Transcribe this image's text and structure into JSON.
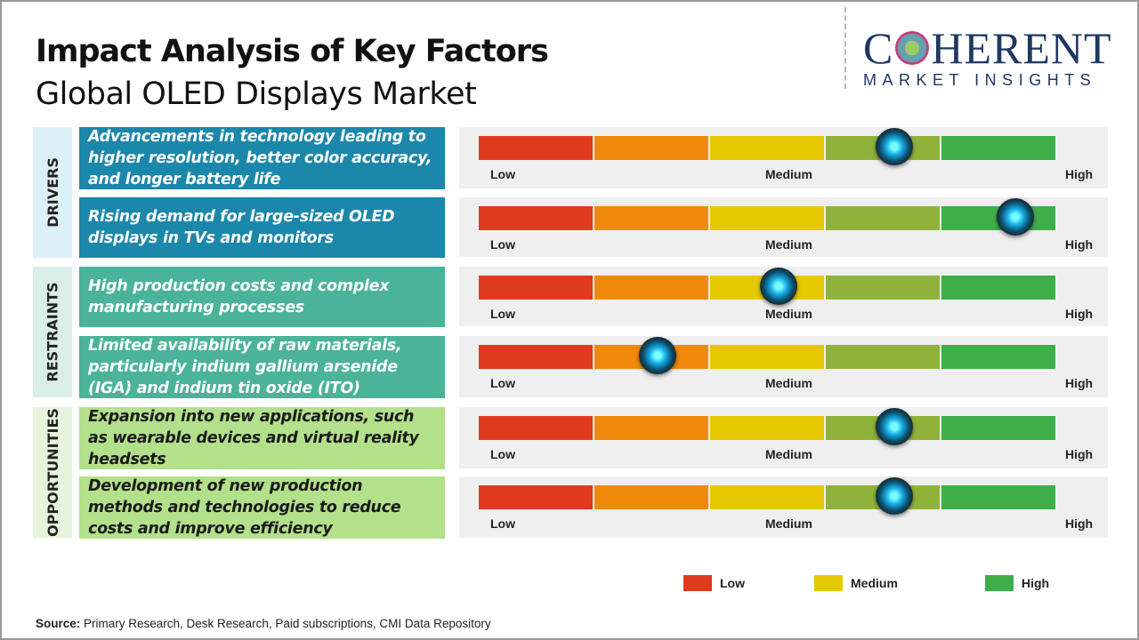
{
  "header": {
    "title": "Impact Analysis of Key Factors",
    "subtitle": "Global OLED Displays Market"
  },
  "logo": {
    "main_left": "C",
    "main_right": "HERENT",
    "sub": "MARKET INSIGHTS"
  },
  "scale_colors": [
    "#e03a1e",
    "#ef8a0c",
    "#e6c800",
    "#8fb33a",
    "#3fae49"
  ],
  "scale_labels": {
    "low": "Low",
    "medium": "Medium",
    "high": "High"
  },
  "categories": [
    {
      "label": "DRIVERS",
      "color": "#1b87aa",
      "bg": "#dcf0f7"
    },
    {
      "label": "RESTRAINTS",
      "color": "#4ab39a",
      "bg": "#daeee8"
    },
    {
      "label": "OPPORTUNITIES",
      "color": "#b3e08a",
      "bg": "#e6f4db"
    }
  ],
  "factors": [
    {
      "category": "DRIVERS",
      "text": "Advancements in technology leading to higher resolution, better color accuracy, and longer battery life",
      "impact": 0.72
    },
    {
      "category": "DRIVERS",
      "text": "Rising demand for large-sized OLED displays in TVs and monitors",
      "impact": 0.93
    },
    {
      "category": "RESTRAINTS",
      "text": "High production costs and complex manufacturing processes",
      "impact": 0.52
    },
    {
      "category": "RESTRAINTS",
      "text": "Limited availability of raw materials, particularly indium gallium arsenide (IGA) and indium tin oxide (ITO)",
      "impact": 0.31
    },
    {
      "category": "OPPORTUNITIES",
      "text": "Expansion into new applications, such as wearable devices and virtual reality headsets",
      "impact": 0.72
    },
    {
      "category": "OPPORTUNITIES",
      "text": "Development of new production methods and technologies to reduce costs and improve efficiency",
      "impact": 0.72
    }
  ],
  "legend": [
    {
      "label": "Low",
      "color": "#e03a1e"
    },
    {
      "label": "Medium",
      "color": "#e6c800"
    },
    {
      "label": "High",
      "color": "#3fae49"
    }
  ],
  "source": {
    "label": "Source:",
    "text": " Primary Research, Desk Research, Paid subscriptions, CMI Data Repository"
  }
}
